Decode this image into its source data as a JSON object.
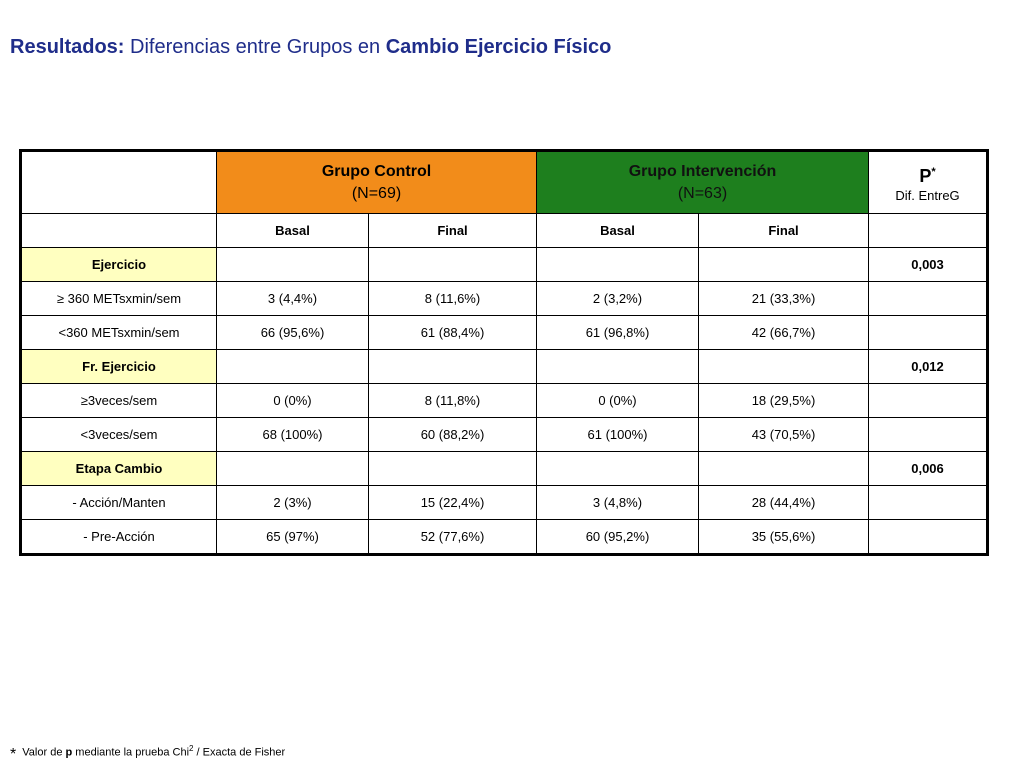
{
  "title": {
    "part1": "Resultados:",
    "part2": " Diferencias entre Grupos en ",
    "part3": "Cambio Ejercicio Físico"
  },
  "table": {
    "group_control": {
      "label": "Grupo Control",
      "n": "(N=69)"
    },
    "group_intervention": {
      "label": "Grupo Intervención",
      "n": "(N=63)"
    },
    "p_header": {
      "label": "P",
      "marker": "*",
      "sub": "Dif. EntreG"
    },
    "subheaders": [
      "Basal",
      "Final",
      "Basal",
      "Final"
    ],
    "rows": [
      {
        "label": "Ejercicio",
        "type": "section",
        "cells": [
          "",
          "",
          "",
          ""
        ],
        "p": "0,003"
      },
      {
        "label_main": "≥ 360 ",
        "label_small": "METsxmin/sem",
        "cells": [
          "3 (4,4%)",
          "8 (11,6%)",
          "2 (3,2%)",
          "21 (33,3%)"
        ],
        "p": ""
      },
      {
        "label_main": "<360 ",
        "label_small": "METsxmin/sem",
        "cells": [
          "66 (95,6%)",
          "61 (88,4%)",
          "61 (96,8%)",
          "42 (66,7%)"
        ],
        "p": ""
      },
      {
        "label": "Fr. Ejercicio",
        "type": "section",
        "cells": [
          "",
          "",
          "",
          ""
        ],
        "p": "0,012"
      },
      {
        "label": "≥3veces/sem",
        "cells": [
          "0 (0%)",
          "8 (11,8%)",
          "0 (0%)",
          "18 (29,5%)"
        ],
        "p": ""
      },
      {
        "label": "<3veces/sem",
        "cells": [
          "68 (100%)",
          "60 (88,2%)",
          "61 (100%)",
          "43 (70,5%)"
        ],
        "p": ""
      },
      {
        "label": "Etapa Cambio",
        "type": "section",
        "cells": [
          "",
          "",
          "",
          ""
        ],
        "p": "0,006"
      },
      {
        "label": "- Acción/Manten",
        "cells": [
          "2 (3%)",
          "15 (22,4%)",
          "3 (4,8%)",
          "28 (44,4%)"
        ],
        "p": ""
      },
      {
        "label": "- Pre-Acción",
        "cells": [
          "65 (97%)",
          "52 (77,6%)",
          "60 (95,2%)",
          "35 (55,6%)"
        ],
        "p": ""
      }
    ]
  },
  "footnote": {
    "star": "*",
    "text1": " Valor de ",
    "bold": "p",
    "text2": " mediante la prueba Chi",
    "sup": "2",
    "text3": " / Exacta de Fisher"
  },
  "colors": {
    "control_header": "#f28c1a",
    "intervention_header": "#1e7f1e",
    "section_fill": "#ffffc0",
    "title_text": "#1f2d8a"
  }
}
